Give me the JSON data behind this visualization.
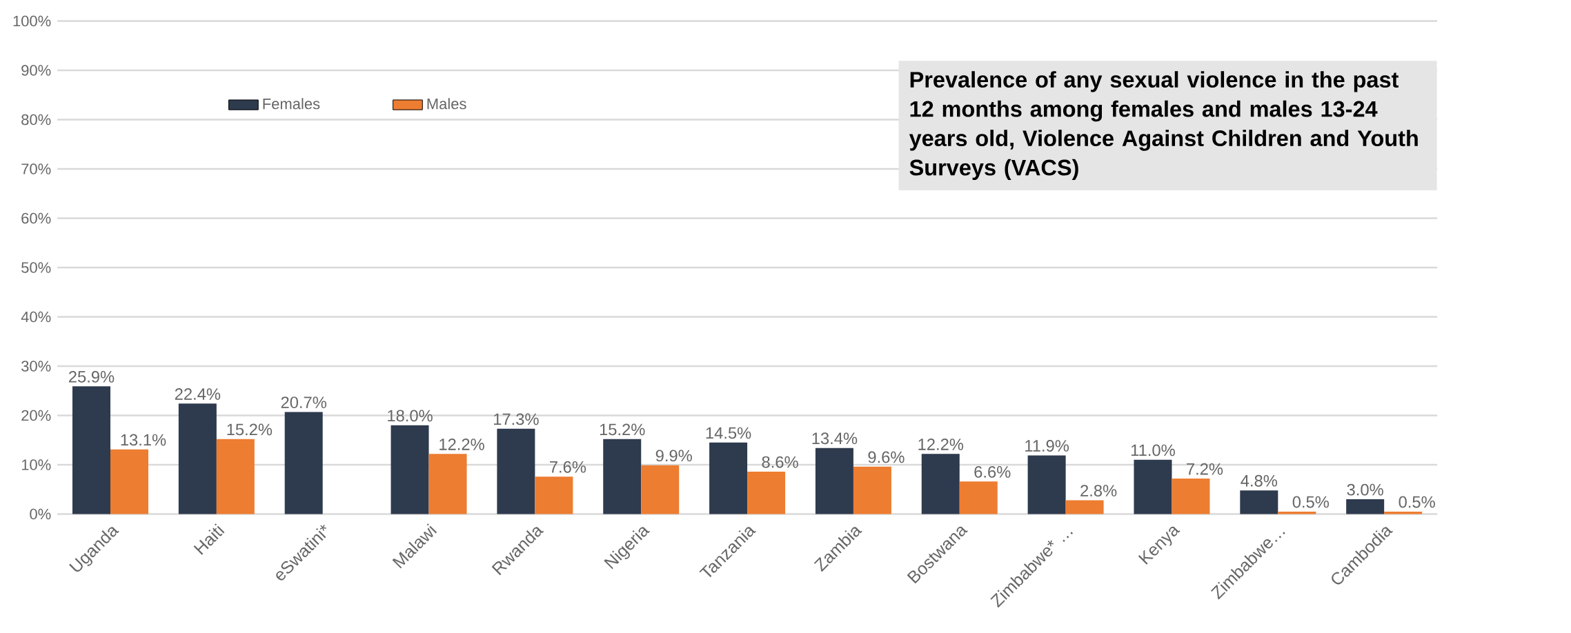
{
  "chart_data": {
    "type": "bar",
    "title": "Prevalence of any sexual violence in the past 12 months among females and males 13-24 years old, Violence Against Children and Youth Surveys (VACS)",
    "categories": [
      "Uganda",
      "Haiti",
      "eSwatini*",
      "Malawi",
      "Rwanda",
      "Nigeria",
      "Tanzania",
      "Zambia",
      "Bostwana",
      "Zimbabwe* …",
      "Kenya",
      "Zimbabwe…",
      "Cambodia"
    ],
    "series": [
      {
        "name": "Females",
        "color": "#2e3a4e",
        "values": [
          25.9,
          22.4,
          20.7,
          18.0,
          17.3,
          15.2,
          14.5,
          13.4,
          12.2,
          11.9,
          11.0,
          4.8,
          3.0
        ],
        "value_labels": [
          "25.9%",
          "22.4%",
          "20.7%",
          "18.0%",
          "17.3%",
          "15.2%",
          "14.5%",
          "13.4%",
          "12.2%",
          "11.9%",
          "11.0%",
          "4.8%",
          "3.0%"
        ]
      },
      {
        "name": "Males",
        "color": "#ed7d31",
        "values": [
          13.1,
          15.2,
          null,
          12.2,
          7.6,
          9.9,
          8.6,
          9.6,
          6.6,
          2.8,
          7.2,
          0.5,
          0.5
        ],
        "value_labels": [
          "13.1%",
          "15.2%",
          null,
          "12.2%",
          "7.6%",
          "9.9%",
          "8.6%",
          "9.6%",
          "6.6%",
          "2.8%",
          "7.2%",
          "0.5%",
          "0.5%"
        ]
      }
    ],
    "ylim": [
      0,
      100
    ],
    "yticks": [
      {
        "value": 0,
        "label": "0%"
      },
      {
        "value": 10,
        "label": "10%"
      },
      {
        "value": 20,
        "label": "20%"
      },
      {
        "value": 30,
        "label": "30%"
      },
      {
        "value": 40,
        "label": "40%"
      },
      {
        "value": 50,
        "label": "50%"
      },
      {
        "value": 60,
        "label": "60%"
      },
      {
        "value": 70,
        "label": "70%"
      },
      {
        "value": 80,
        "label": "80%"
      },
      {
        "value": 90,
        "label": "90%"
      },
      {
        "value": 100,
        "label": "100%"
      }
    ],
    "grid": "y",
    "legend": "top left"
  }
}
